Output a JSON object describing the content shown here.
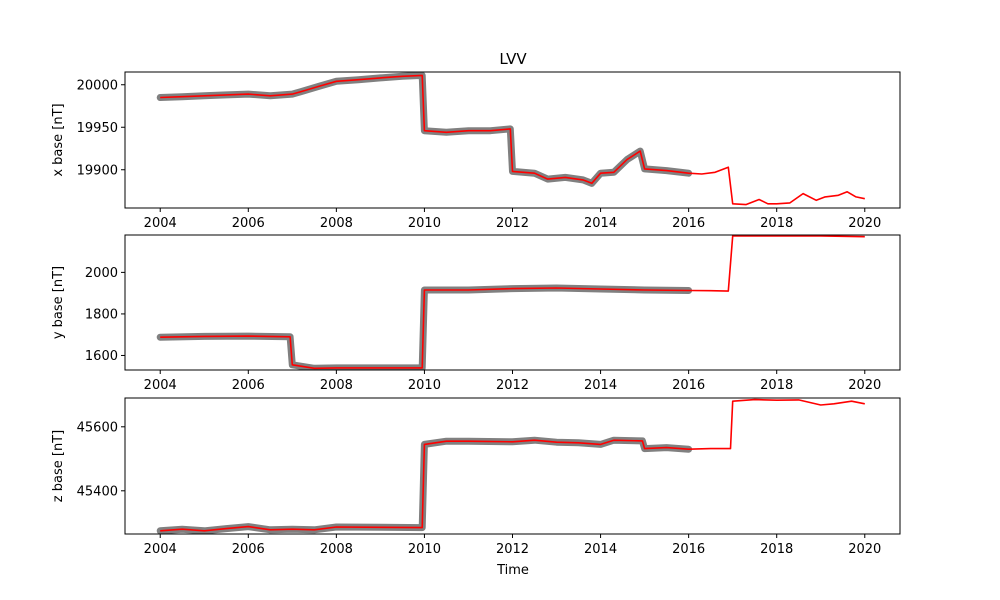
{
  "chart_data": {
    "type": "line",
    "title": "LVV",
    "xlabel": "Time",
    "x_ticks": [
      "2004",
      "2006",
      "2008",
      "2010",
      "2012",
      "2014",
      "2016",
      "2018",
      "2020"
    ],
    "xlim": [
      2003.2,
      2020.8
    ],
    "grid": false,
    "colors": {
      "observed": "#808080",
      "model": "#ff0000"
    },
    "panels": [
      {
        "ylabel": "x base [nT]",
        "ylim": [
          19855,
          20015
        ],
        "y_ticks": [
          19900,
          19950,
          20000
        ],
        "series": [
          {
            "role": "observed",
            "x": [
              2004.0,
              2004.5,
              2005.0,
              2005.5,
              2006.0,
              2006.5,
              2007.0,
              2007.2,
              2007.6,
              2008.0,
              2008.5,
              2009.0,
              2009.5,
              2009.95,
              2010.0,
              2010.5,
              2011.0,
              2011.5,
              2011.95,
              2012.0,
              2012.5,
              2012.8,
              2013.2,
              2013.6,
              2013.8,
              2014.0,
              2014.3,
              2014.6,
              2014.9,
              2015.0,
              2015.5,
              2016.0
            ],
            "y": [
              19985,
              19986,
              19987,
              19988,
              19989,
              19987,
              19989,
              19992,
              19998,
              20004,
              20006,
              20008,
              20010,
              20011,
              19946,
              19944,
              19946,
              19946,
              19948,
              19898,
              19896,
              19889,
              19891,
              19888,
              19884,
              19896,
              19897,
              19912,
              19922,
              19901,
              19899,
              19896
            ]
          },
          {
            "role": "model",
            "x": [
              2004.0,
              2004.5,
              2005.0,
              2005.5,
              2006.0,
              2006.5,
              2007.0,
              2007.2,
              2007.6,
              2008.0,
              2008.5,
              2009.0,
              2009.5,
              2009.95,
              2010.0,
              2010.5,
              2011.0,
              2011.5,
              2011.95,
              2012.0,
              2012.5,
              2012.8,
              2013.2,
              2013.6,
              2013.8,
              2014.0,
              2014.3,
              2014.6,
              2014.9,
              2015.0,
              2015.5,
              2016.0,
              2016.3,
              2016.6,
              2016.9,
              2017.0,
              2017.3,
              2017.6,
              2017.8,
              2018.0,
              2018.3,
              2018.6,
              2018.9,
              2019.1,
              2019.4,
              2019.6,
              2019.8,
              2020.0
            ],
            "y": [
              19985,
              19986,
              19987,
              19988,
              19989,
              19987,
              19989,
              19992,
              19998,
              20004,
              20006,
              20008,
              20010,
              20011,
              19946,
              19944,
              19946,
              19946,
              19948,
              19898,
              19896,
              19889,
              19891,
              19888,
              19884,
              19896,
              19897,
              19912,
              19922,
              19901,
              19899,
              19896,
              19895,
              19897,
              19903,
              19860,
              19859,
              19865,
              19860,
              19860,
              19861,
              19872,
              19864,
              19868,
              19870,
              19874,
              19868,
              19866
            ]
          }
        ]
      },
      {
        "ylabel": "y base [nT]",
        "ylim": [
          1530,
          2180
        ],
        "y_ticks": [
          1600,
          1800,
          2000
        ],
        "series": [
          {
            "role": "observed",
            "x": [
              2004.0,
              2005.0,
              2006.0,
              2006.95,
              2007.0,
              2007.5,
              2008.0,
              2009.0,
              2009.95,
              2010.0,
              2011.0,
              2012.0,
              2013.0,
              2014.0,
              2015.0,
              2016.0
            ],
            "y": [
              1688,
              1692,
              1693,
              1690,
              1555,
              1538,
              1540,
              1540,
              1540,
              1915,
              1915,
              1922,
              1925,
              1920,
              1915,
              1913
            ]
          },
          {
            "role": "model",
            "x": [
              2004.0,
              2005.0,
              2006.0,
              2006.95,
              2007.0,
              2007.5,
              2008.0,
              2009.0,
              2009.95,
              2010.0,
              2011.0,
              2012.0,
              2013.0,
              2014.0,
              2015.0,
              2016.0,
              2016.5,
              2016.9,
              2017.0,
              2018.0,
              2019.0,
              2020.0
            ],
            "y": [
              1688,
              1692,
              1693,
              1690,
              1555,
              1538,
              1540,
              1540,
              1540,
              1915,
              1915,
              1922,
              1925,
              1920,
              1915,
              1913,
              1912,
              1910,
              2175,
              2175,
              2175,
              2172
            ]
          }
        ]
      },
      {
        "ylabel": "z base [nT]",
        "ylim": [
          45265,
          45690
        ],
        "y_ticks": [
          45400,
          45600
        ],
        "series": [
          {
            "role": "observed",
            "x": [
              2004.0,
              2004.5,
              2005.0,
              2005.5,
              2006.0,
              2006.5,
              2007.0,
              2007.5,
              2008.0,
              2009.0,
              2009.95,
              2010.0,
              2010.5,
              2011.0,
              2012.0,
              2012.5,
              2013.0,
              2013.5,
              2014.0,
              2014.3,
              2014.95,
              2015.0,
              2015.5,
              2016.0
            ],
            "y": [
              45275,
              45280,
              45275,
              45282,
              45288,
              45278,
              45280,
              45278,
              45287,
              45286,
              45285,
              45545,
              45555,
              45555,
              45553,
              45558,
              45552,
              45550,
              45545,
              45558,
              45556,
              45532,
              45535,
              45530
            ]
          },
          {
            "role": "model",
            "x": [
              2004.0,
              2004.5,
              2005.0,
              2005.5,
              2006.0,
              2006.5,
              2007.0,
              2007.5,
              2008.0,
              2009.0,
              2009.95,
              2010.0,
              2010.5,
              2011.0,
              2012.0,
              2012.5,
              2013.0,
              2013.5,
              2014.0,
              2014.3,
              2014.95,
              2015.0,
              2015.5,
              2016.0,
              2016.5,
              2016.95,
              2017.0,
              2017.5,
              2018.0,
              2018.5,
              2019.0,
              2019.3,
              2019.7,
              2020.0
            ],
            "y": [
              45275,
              45280,
              45275,
              45282,
              45288,
              45278,
              45280,
              45278,
              45287,
              45286,
              45285,
              45545,
              45555,
              45555,
              45553,
              45558,
              45552,
              45550,
              45545,
              45558,
              45556,
              45532,
              45535,
              45530,
              45532,
              45532,
              45680,
              45685,
              45683,
              45684,
              45668,
              45672,
              45680,
              45672
            ]
          }
        ]
      }
    ]
  }
}
